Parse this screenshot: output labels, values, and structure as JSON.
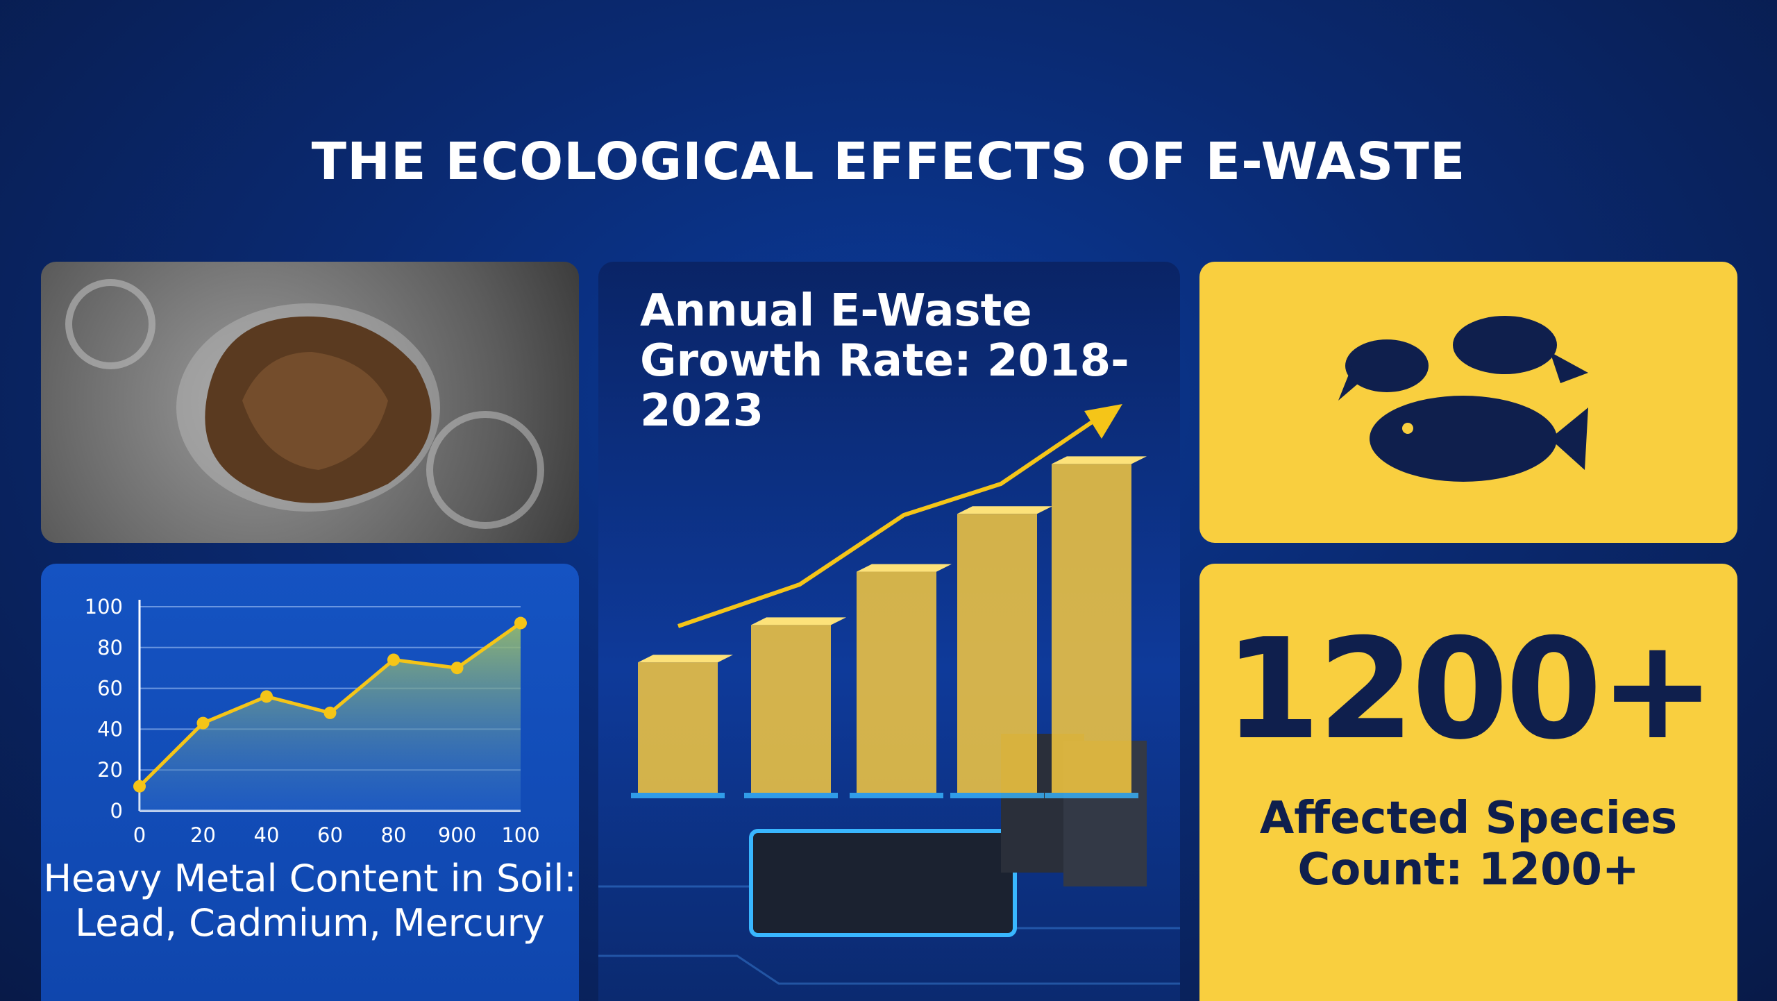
{
  "title": "THE ECOLOGICAL EFFECTS OF E-WASTE",
  "chart_data": [
    {
      "type": "line",
      "title": "Heavy Metal Content in Soil: Lead, Cadmium, Mercury",
      "categories": [
        "0",
        "20",
        "40",
        "60",
        "80",
        "900",
        "100"
      ],
      "series": [
        {
          "color": "#f5c518",
          "values": [
            12,
            43,
            56,
            48,
            74,
            70,
            92
          ]
        }
      ],
      "ylim": [
        0,
        100
      ],
      "yticks": [
        0,
        20,
        40,
        60,
        80,
        100
      ],
      "grid": true
    },
    {
      "type": "bar",
      "title": "Annual E-Waste Growth Rate: 2018-2023",
      "categories": [
        null,
        null,
        null,
        null,
        null
      ],
      "values": [
        115,
        148,
        195,
        246,
        290
      ],
      "color": "#f7c940"
    }
  ],
  "stat": {
    "value": "1200+",
    "label": "Affected Species Count: 1200+"
  }
}
